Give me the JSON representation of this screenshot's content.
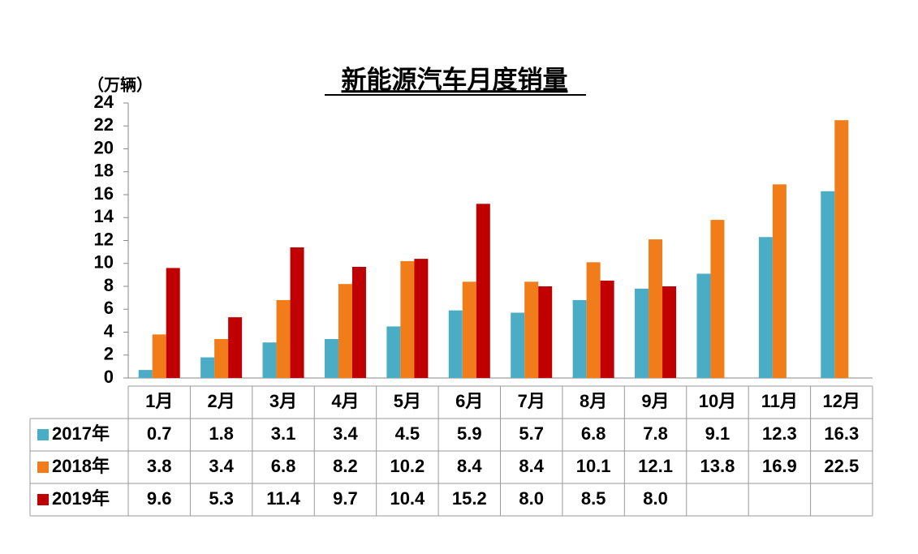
{
  "chart_data": {
    "type": "bar",
    "title": "新能源汽车月度销量",
    "y_unit": "（万辆）",
    "categories": [
      "1月",
      "2月",
      "3月",
      "4月",
      "5月",
      "6月",
      "7月",
      "8月",
      "9月",
      "10月",
      "11月",
      "12月"
    ],
    "series": [
      {
        "name": "2017年",
        "color": "#4bacc6",
        "values": [
          0.7,
          1.8,
          3.1,
          3.4,
          4.5,
          5.9,
          5.7,
          6.8,
          7.8,
          9.1,
          12.3,
          16.3
        ]
      },
      {
        "name": "2018年",
        "color": "#f07d1a",
        "values": [
          3.8,
          3.4,
          6.8,
          8.2,
          10.2,
          8.4,
          8.4,
          10.1,
          12.1,
          13.8,
          16.9,
          22.5
        ]
      },
      {
        "name": "2019年",
        "color": "#c00000",
        "values": [
          9.6,
          5.3,
          11.4,
          9.7,
          10.4,
          15.2,
          8.0,
          8.5,
          8.0,
          null,
          null,
          null
        ],
        "value_labels": [
          "9.6",
          "5.3",
          "11.4",
          "9.7",
          "10.4",
          "15.2",
          "8.0",
          "8.5",
          "8.0",
          null,
          null,
          null
        ]
      }
    ],
    "ylim": [
      0,
      24
    ],
    "yticks": [
      0,
      2,
      4,
      6,
      8,
      10,
      12,
      14,
      16,
      18,
      20,
      22,
      24
    ]
  }
}
